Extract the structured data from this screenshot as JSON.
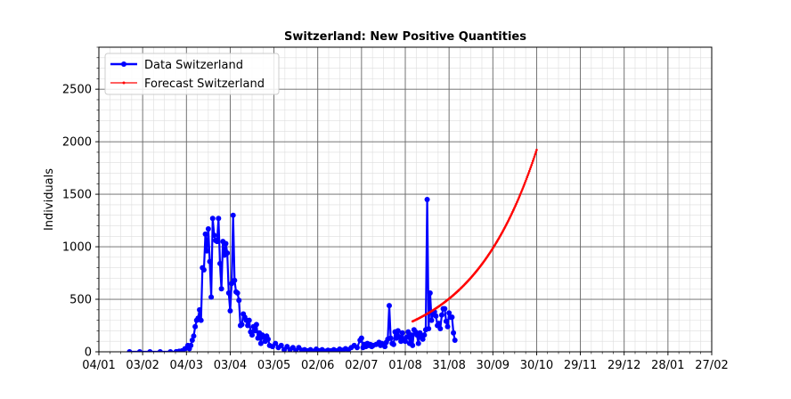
{
  "chart_data": {
    "type": "line",
    "title": "Switzerland: New Positive Quantities",
    "xlabel": "",
    "ylabel": "Individuals",
    "x_range": [
      "2020-01-04",
      "2021-02-27"
    ],
    "ylim": [
      0,
      2900
    ],
    "y_ticks": [
      0,
      500,
      1000,
      1500,
      2000,
      2500
    ],
    "x_ticks": [
      {
        "date": "2020-01-04",
        "label": "04/01"
      },
      {
        "date": "2020-02-03",
        "label": "03/02"
      },
      {
        "date": "2020-03-04",
        "label": "04/03"
      },
      {
        "date": "2020-04-03",
        "label": "03/04"
      },
      {
        "date": "2020-05-03",
        "label": "03/05"
      },
      {
        "date": "2020-06-02",
        "label": "02/06"
      },
      {
        "date": "2020-07-02",
        "label": "02/07"
      },
      {
        "date": "2020-08-01",
        "label": "01/08"
      },
      {
        "date": "2020-08-31",
        "label": "31/08"
      },
      {
        "date": "2020-09-30",
        "label": "30/09"
      },
      {
        "date": "2020-10-30",
        "label": "30/10"
      },
      {
        "date": "2020-11-29",
        "label": "29/11"
      },
      {
        "date": "2020-12-29",
        "label": "29/12"
      },
      {
        "date": "2021-01-28",
        "label": "28/01"
      },
      {
        "date": "2021-02-27",
        "label": "27/02"
      }
    ],
    "grid": true,
    "minor_grid": true,
    "legend_position": "top-left",
    "series": [
      {
        "name": "Data Switzerland",
        "color": "#0000ff",
        "marker": "circle",
        "points": [
          [
            "2020-01-25",
            0
          ],
          [
            "2020-02-01",
            0
          ],
          [
            "2020-02-08",
            0
          ],
          [
            "2020-02-15",
            0
          ],
          [
            "2020-02-22",
            0
          ],
          [
            "2020-02-26",
            1
          ],
          [
            "2020-02-28",
            5
          ],
          [
            "2020-03-01",
            10
          ],
          [
            "2020-03-03",
            30
          ],
          [
            "2020-03-05",
            60
          ],
          [
            "2020-03-06",
            30
          ],
          [
            "2020-03-07",
            60
          ],
          [
            "2020-03-08",
            110
          ],
          [
            "2020-03-09",
            150
          ],
          [
            "2020-03-10",
            240
          ],
          [
            "2020-03-11",
            300
          ],
          [
            "2020-03-12",
            320
          ],
          [
            "2020-03-13",
            400
          ],
          [
            "2020-03-14",
            300
          ],
          [
            "2020-03-15",
            800
          ],
          [
            "2020-03-16",
            780
          ],
          [
            "2020-03-17",
            1120
          ],
          [
            "2020-03-18",
            960
          ],
          [
            "2020-03-19",
            1170
          ],
          [
            "2020-03-20",
            860
          ],
          [
            "2020-03-21",
            520
          ],
          [
            "2020-03-22",
            1270
          ],
          [
            "2020-03-23",
            1110
          ],
          [
            "2020-03-24",
            1060
          ],
          [
            "2020-03-25",
            1050
          ],
          [
            "2020-03-26",
            1270
          ],
          [
            "2020-03-27",
            840
          ],
          [
            "2020-03-28",
            600
          ],
          [
            "2020-03-29",
            1050
          ],
          [
            "2020-03-30",
            920
          ],
          [
            "2020-03-31",
            1030
          ],
          [
            "2020-04-01",
            940
          ],
          [
            "2020-04-02",
            560
          ],
          [
            "2020-04-03",
            390
          ],
          [
            "2020-04-04",
            650
          ],
          [
            "2020-04-05",
            1300
          ],
          [
            "2020-04-06",
            680
          ],
          [
            "2020-04-07",
            570
          ],
          [
            "2020-04-08",
            560
          ],
          [
            "2020-04-09",
            490
          ],
          [
            "2020-04-10",
            250
          ],
          [
            "2020-04-11",
            260
          ],
          [
            "2020-04-12",
            360
          ],
          [
            "2020-04-13",
            330
          ],
          [
            "2020-04-14",
            300
          ],
          [
            "2020-04-15",
            250
          ],
          [
            "2020-04-16",
            300
          ],
          [
            "2020-04-17",
            190
          ],
          [
            "2020-04-18",
            160
          ],
          [
            "2020-04-19",
            240
          ],
          [
            "2020-04-20",
            200
          ],
          [
            "2020-04-21",
            260
          ],
          [
            "2020-04-22",
            130
          ],
          [
            "2020-04-23",
            180
          ],
          [
            "2020-04-24",
            80
          ],
          [
            "2020-04-25",
            160
          ],
          [
            "2020-04-26",
            140
          ],
          [
            "2020-04-27",
            100
          ],
          [
            "2020-04-28",
            150
          ],
          [
            "2020-04-29",
            120
          ],
          [
            "2020-04-30",
            60
          ],
          [
            "2020-05-02",
            50
          ],
          [
            "2020-05-04",
            80
          ],
          [
            "2020-05-06",
            40
          ],
          [
            "2020-05-08",
            60
          ],
          [
            "2020-05-10",
            20
          ],
          [
            "2020-05-12",
            50
          ],
          [
            "2020-05-14",
            20
          ],
          [
            "2020-05-16",
            40
          ],
          [
            "2020-05-18",
            10
          ],
          [
            "2020-05-20",
            40
          ],
          [
            "2020-05-22",
            15
          ],
          [
            "2020-05-24",
            20
          ],
          [
            "2020-05-26",
            10
          ],
          [
            "2020-05-28",
            20
          ],
          [
            "2020-05-30",
            5
          ],
          [
            "2020-06-01",
            25
          ],
          [
            "2020-06-03",
            10
          ],
          [
            "2020-06-05",
            20
          ],
          [
            "2020-06-07",
            5
          ],
          [
            "2020-06-09",
            15
          ],
          [
            "2020-06-11",
            10
          ],
          [
            "2020-06-13",
            20
          ],
          [
            "2020-06-15",
            10
          ],
          [
            "2020-06-17",
            25
          ],
          [
            "2020-06-19",
            15
          ],
          [
            "2020-06-21",
            30
          ],
          [
            "2020-06-23",
            20
          ],
          [
            "2020-06-25",
            40
          ],
          [
            "2020-06-27",
            60
          ],
          [
            "2020-06-29",
            40
          ],
          [
            "2020-07-01",
            110
          ],
          [
            "2020-07-02",
            130
          ],
          [
            "2020-07-03",
            40
          ],
          [
            "2020-07-04",
            70
          ],
          [
            "2020-07-05",
            50
          ],
          [
            "2020-07-06",
            80
          ],
          [
            "2020-07-07",
            60
          ],
          [
            "2020-07-08",
            70
          ],
          [
            "2020-07-09",
            50
          ],
          [
            "2020-07-10",
            60
          ],
          [
            "2020-07-12",
            70
          ],
          [
            "2020-07-14",
            90
          ],
          [
            "2020-07-15",
            60
          ],
          [
            "2020-07-16",
            80
          ],
          [
            "2020-07-18",
            50
          ],
          [
            "2020-07-19",
            90
          ],
          [
            "2020-07-20",
            120
          ],
          [
            "2020-07-21",
            440
          ],
          [
            "2020-07-22",
            130
          ],
          [
            "2020-07-23",
            80
          ],
          [
            "2020-07-24",
            70
          ],
          [
            "2020-07-25",
            190
          ],
          [
            "2020-07-26",
            130
          ],
          [
            "2020-07-27",
            200
          ],
          [
            "2020-07-28",
            140
          ],
          [
            "2020-07-29",
            100
          ],
          [
            "2020-07-30",
            180
          ],
          [
            "2020-07-31",
            110
          ],
          [
            "2020-08-01",
            100
          ],
          [
            "2020-08-02",
            140
          ],
          [
            "2020-08-03",
            190
          ],
          [
            "2020-08-04",
            80
          ],
          [
            "2020-08-05",
            160
          ],
          [
            "2020-08-06",
            60
          ],
          [
            "2020-08-07",
            210
          ],
          [
            "2020-08-08",
            190
          ],
          [
            "2020-08-09",
            160
          ],
          [
            "2020-08-10",
            80
          ],
          [
            "2020-08-11",
            180
          ],
          [
            "2020-08-12",
            140
          ],
          [
            "2020-08-13",
            120
          ],
          [
            "2020-08-14",
            160
          ],
          [
            "2020-08-15",
            210
          ],
          [
            "2020-08-16",
            1450
          ],
          [
            "2020-08-17",
            220
          ],
          [
            "2020-08-18",
            560
          ],
          [
            "2020-08-19",
            300
          ],
          [
            "2020-08-20",
            360
          ],
          [
            "2020-08-21",
            380
          ],
          [
            "2020-08-22",
            340
          ],
          [
            "2020-08-23",
            250
          ],
          [
            "2020-08-24",
            270
          ],
          [
            "2020-08-25",
            220
          ],
          [
            "2020-08-26",
            350
          ],
          [
            "2020-08-27",
            410
          ],
          [
            "2020-08-28",
            410
          ],
          [
            "2020-08-29",
            290
          ],
          [
            "2020-08-30",
            240
          ],
          [
            "2020-08-31",
            370
          ],
          [
            "2020-09-01",
            330
          ],
          [
            "2020-09-02",
            330
          ],
          [
            "2020-09-03",
            180
          ],
          [
            "2020-09-04",
            110
          ]
        ]
      },
      {
        "name": "Forecast Switzerland",
        "color": "#ff0000",
        "marker": "small-dot",
        "start": "2020-08-06",
        "end": "2020-10-30",
        "base_value": 290,
        "growth_per_day": 0.02225
      }
    ]
  }
}
